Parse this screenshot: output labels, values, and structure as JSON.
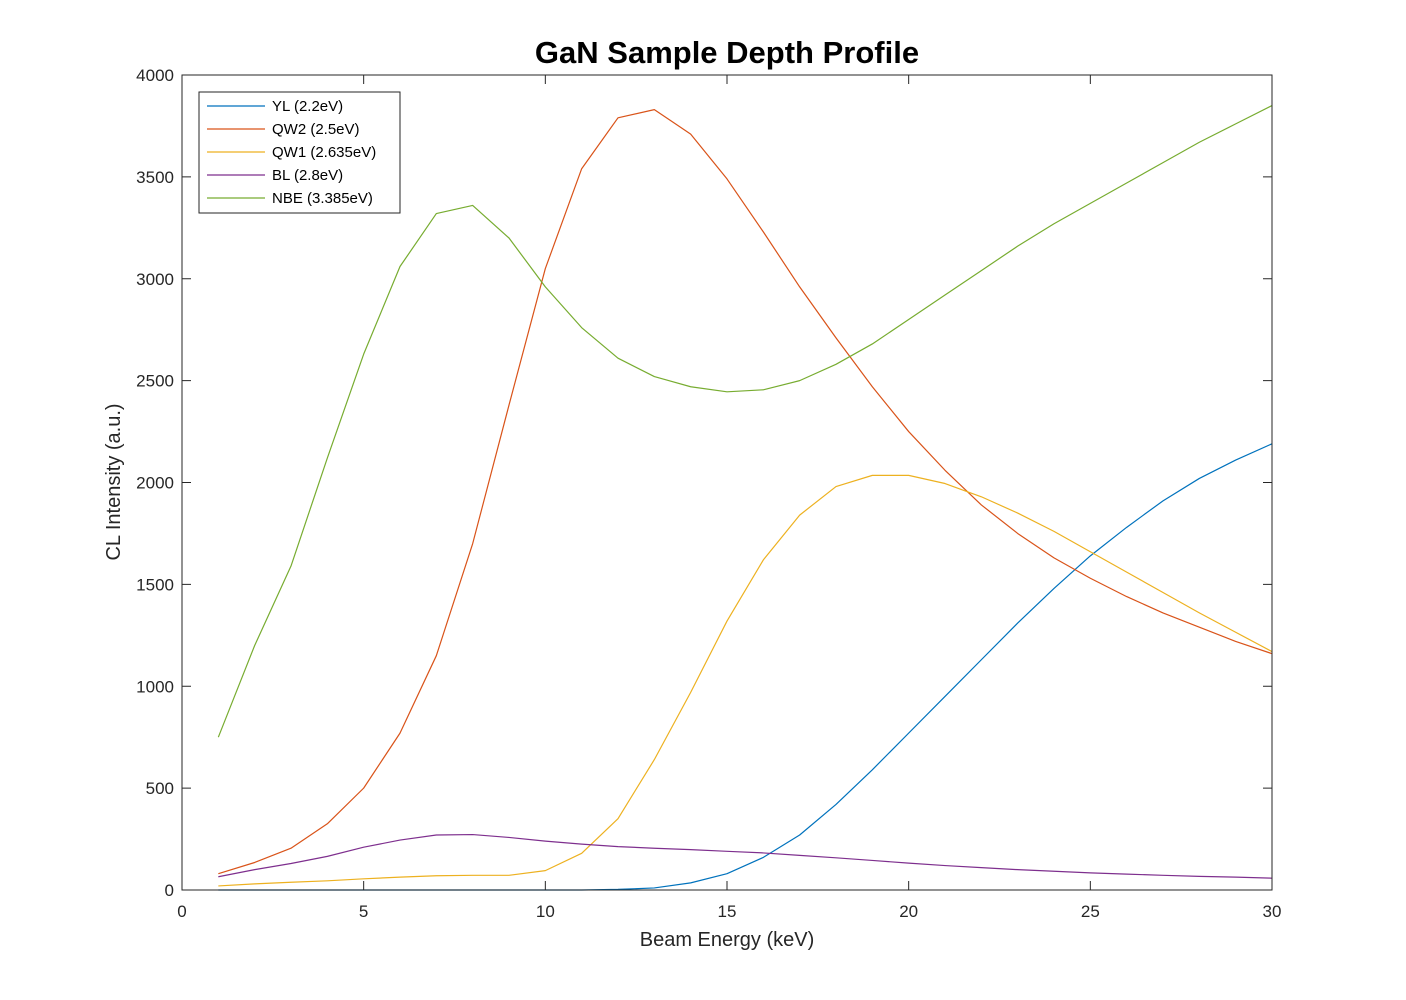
{
  "chart_data": {
    "type": "line",
    "title": "GaN Sample Depth Profile",
    "xlabel": "Beam Energy (keV)",
    "ylabel": "CL Intensity (a.u.)",
    "xlim": [
      0,
      30
    ],
    "ylim": [
      0,
      4000
    ],
    "xticks": [
      "0",
      "5",
      "10",
      "15",
      "20",
      "25",
      "30"
    ],
    "yticks": [
      "0",
      "500",
      "1000",
      "1500",
      "2000",
      "2500",
      "3000",
      "3500",
      "4000"
    ],
    "grid": false,
    "legend_position": "top-left",
    "x": [
      1,
      2,
      3,
      4,
      5,
      6,
      7,
      8,
      9,
      10,
      11,
      12,
      13,
      14,
      15,
      16,
      17,
      18,
      19,
      20,
      21,
      22,
      23,
      24,
      25,
      26,
      27,
      28,
      29,
      30
    ],
    "series": [
      {
        "name": "YL (2.2eV)",
        "color": "#0072BD",
        "values": [
          0,
          0,
          0,
          0,
          0,
          0,
          0,
          0,
          0,
          0,
          0,
          3,
          10,
          35,
          80,
          160,
          270,
          420,
          590,
          770,
          950,
          1130,
          1310,
          1480,
          1640,
          1780,
          1910,
          2020,
          2110,
          2190
        ]
      },
      {
        "name": "QW2 (2.5eV)",
        "color": "#D95319",
        "values": [
          80,
          135,
          205,
          325,
          500,
          770,
          1150,
          1700,
          2380,
          3050,
          3540,
          3790,
          3830,
          3710,
          3490,
          3230,
          2960,
          2710,
          2470,
          2250,
          2060,
          1890,
          1750,
          1630,
          1530,
          1440,
          1360,
          1290,
          1220,
          1160
        ]
      },
      {
        "name": "QW1 (2.635eV)",
        "color": "#EDB120",
        "values": [
          20,
          30,
          38,
          45,
          55,
          63,
          70,
          72,
          72,
          95,
          180,
          350,
          640,
          970,
          1320,
          1620,
          1840,
          1980,
          2035,
          2035,
          1995,
          1930,
          1850,
          1760,
          1660,
          1560,
          1460,
          1360,
          1265,
          1170
        ]
      },
      {
        "name": "BL (2.8eV)",
        "color": "#7E2F8E",
        "values": [
          65,
          100,
          130,
          165,
          210,
          245,
          270,
          272,
          258,
          240,
          225,
          213,
          205,
          198,
          190,
          182,
          170,
          158,
          145,
          132,
          120,
          110,
          100,
          92,
          84,
          78,
          72,
          67,
          63,
          58
        ]
      },
      {
        "name": "NBE (3.385eV)",
        "color": "#77AC30",
        "values": [
          750,
          1200,
          1590,
          2120,
          2630,
          3060,
          3320,
          3360,
          3200,
          2960,
          2760,
          2610,
          2520,
          2470,
          2445,
          2455,
          2500,
          2580,
          2680,
          2800,
          2920,
          3040,
          3160,
          3270,
          3370,
          3470,
          3570,
          3670,
          3760,
          3850
        ]
      }
    ]
  }
}
